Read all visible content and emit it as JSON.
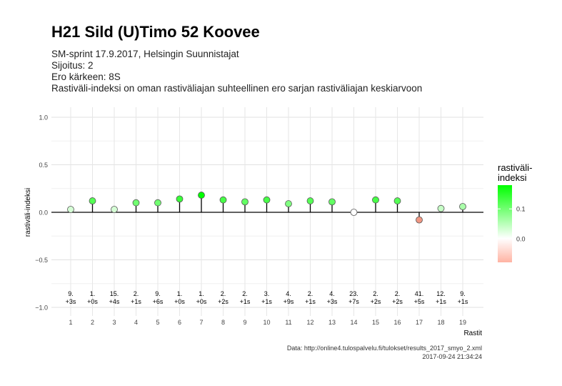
{
  "title": "H21 Sild (U)Timo 52 Koovee",
  "subtitle_lines": [
    "SM-sprint 17.9.2017, Helsingin Suunnistajat",
    "Sijoitus: 2",
    "Ero kärkeen: 8S",
    "Rastiväli-indeksi on oman rastiväliajan suhteellinen ero sarjan rastiväliajan keskiarvoon"
  ],
  "caption": {
    "source": "Data: http://online4.tulospalvelu.fi/tulokset/results_2017_smyo_2.xml",
    "timestamp": "2017-09-24 21:34:24"
  },
  "colors": {
    "high": "#00ff00",
    "mid": "#ffffff",
    "low": "#ff9e8a",
    "line": "#000000"
  },
  "chart_data": {
    "type": "scatter",
    "style": "lollipop",
    "xlabel": "Rastit",
    "ylabel": "rastiväli-indeksi",
    "ylim": [
      -1.0,
      1.0
    ],
    "yticks": [
      "1.0",
      "0.5",
      "0.0",
      "−0.5",
      "−1.0"
    ],
    "ytick_values": [
      1.0,
      0.5,
      0.0,
      -0.5,
      -1.0
    ],
    "x": [
      1,
      2,
      3,
      4,
      5,
      6,
      7,
      8,
      9,
      10,
      11,
      12,
      13,
      14,
      15,
      16,
      17,
      18,
      19
    ],
    "values": [
      0.03,
      0.12,
      0.03,
      0.1,
      0.1,
      0.14,
      0.18,
      0.13,
      0.11,
      0.13,
      0.09,
      0.12,
      0.11,
      0.0,
      0.13,
      0.12,
      -0.08,
      0.04,
      0.06
    ],
    "rank_labels": [
      "9.",
      "1.",
      "15.",
      "2.",
      "9.",
      "1.",
      "1.",
      "2.",
      "2.",
      "3.",
      "4.",
      "2.",
      "4.",
      "23.",
      "2.",
      "2.",
      "41.",
      "12.",
      "9."
    ],
    "diff_labels": [
      "+3s",
      "+0s",
      "+4s",
      "+1s",
      "+6s",
      "+0s",
      "+0s",
      "+2s",
      "+1s",
      "+1s",
      "+9s",
      "+1s",
      "+3s",
      "+7s",
      "+2s",
      "+2s",
      "+5s",
      "+1s",
      "+1s"
    ],
    "legend": {
      "title_line1": "rastiväli-",
      "title_line2": "indeksi",
      "ticks": [
        "0.1",
        "0.0"
      ],
      "tick_values": [
        0.1,
        0.0
      ],
      "range": [
        -0.08,
        0.18
      ],
      "placement": "right"
    }
  }
}
